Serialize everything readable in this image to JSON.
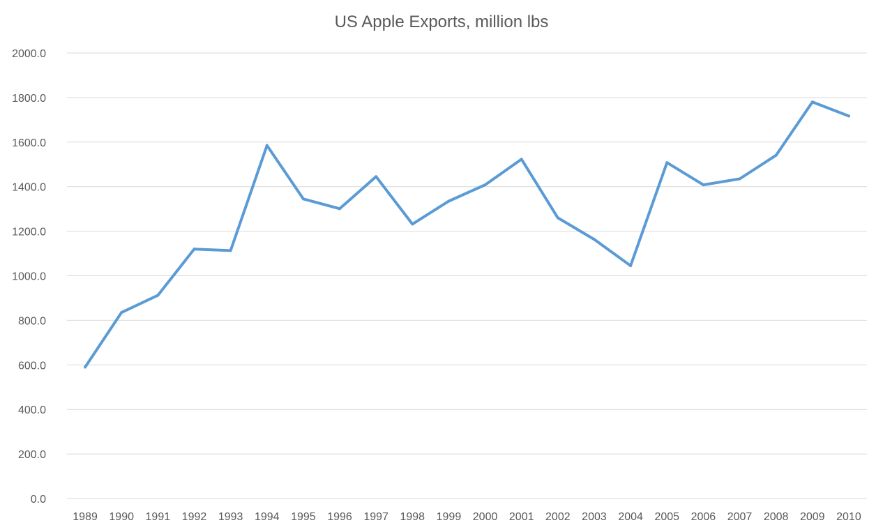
{
  "chart_data": {
    "type": "line",
    "title": "US Apple Exports, million lbs",
    "xlabel": "",
    "ylabel": "",
    "x": [
      "1989",
      "1990",
      "1991",
      "1992",
      "1993",
      "1994",
      "1995",
      "1996",
      "1997",
      "1998",
      "1999",
      "2000",
      "2001",
      "2002",
      "2003",
      "2004",
      "2005",
      "2006",
      "2007",
      "2008",
      "2009",
      "2010"
    ],
    "series": [
      {
        "color": "#5b9bd5",
        "values": [
          590,
          835,
          912,
          1120,
          1113,
          1585,
          1345,
          1301,
          1445,
          1232,
          1335,
          1408,
          1523,
          1260,
          1163,
          1045,
          1508,
          1408,
          1435,
          1541,
          1780,
          1717
        ]
      }
    ],
    "ylim": [
      0,
      2000
    ],
    "yticks": [
      "0.0",
      "200.0",
      "400.0",
      "600.0",
      "800.0",
      "1000.0",
      "1200.0",
      "1400.0",
      "1600.0",
      "1800.0",
      "2000.0"
    ],
    "grid": true,
    "legend": "none"
  }
}
